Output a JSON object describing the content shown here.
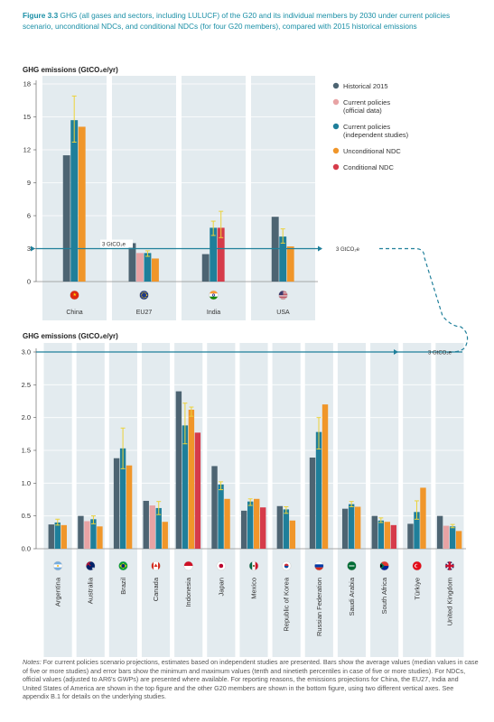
{
  "figure": {
    "label": "Figure 3.3",
    "caption": "GHG (all gases and sectors, including LULUCF) of the G20 and its individual members by 2030 under current policies scenario, unconditional NDCs, and conditional NDCs (for four G20 members), compared with 2015 historical emissions"
  },
  "threshold_label": "3 GtCO₂e",
  "colors": {
    "historical": "#4d6472",
    "cp_official": "#e8a3a4",
    "cp_independent": "#1f7f9a",
    "unconditional": "#f0962a",
    "conditional": "#d63b4a",
    "error": "#ecd23a",
    "panel": "#e3ebef",
    "teal_line": "#1f7f9a"
  },
  "notes": {
    "label": "Notes:",
    "text": "For current policies scenario projections, estimates based on independent studies are presented. Bars show the average values (median values in case of five or more studies) and error bars show the minimum and maximum values (tenth and ninetieth percentiles in case of five or more studies). For NDCs, official values (adjusted to AR6's GWPs) are presented where available. For reporting reasons, the emissions projections for China, the EU27, India and United States of America are shown in the top figure and the other G20 members are shown in the bottom figure, using two different vertical axes. See appendix B.1 for details on the underlying studies."
  },
  "chart_data": [
    {
      "type": "bar",
      "ylabel": "GHG emissions (GtCO₂e/yr)",
      "ylim": [
        0,
        18
      ],
      "yticks": [
        "0",
        "3",
        "6",
        "9",
        "12",
        "15",
        "18"
      ],
      "threshold": 3,
      "legend_position": "right",
      "series": [
        {
          "name": "Historical 2015",
          "key": "historical"
        },
        {
          "name": "Current policies (official data)",
          "key": "cp_official"
        },
        {
          "name": "Current policies (independent studies)",
          "key": "cp_independent"
        },
        {
          "name": "Unconditional NDC",
          "key": "unconditional"
        },
        {
          "name": "Conditional NDC",
          "key": "conditional"
        }
      ],
      "categories": [
        {
          "name": "China",
          "flag": "china-flag-icon",
          "bars": [
            {
              "s": "historical",
              "v": 11.5
            },
            {
              "s": "cp_independent",
              "v": 14.7,
              "err": [
                12.7,
                16.9
              ]
            },
            {
              "s": "unconditional",
              "v": 14.1
            }
          ]
        },
        {
          "name": "EU27",
          "flag": "eu-flag-icon",
          "bars": [
            {
              "s": "historical",
              "v": 3.5
            },
            {
              "s": "cp_official",
              "v": 2.6
            },
            {
              "s": "cp_independent",
              "v": 2.6,
              "err": [
                2.3,
                2.8
              ]
            },
            {
              "s": "unconditional",
              "v": 2.1
            }
          ]
        },
        {
          "name": "India",
          "flag": "india-flag-icon",
          "bars": [
            {
              "s": "historical",
              "v": 2.5
            },
            {
              "s": "cp_independent",
              "v": 4.9,
              "err": [
                4.2,
                5.5
              ]
            },
            {
              "s": "conditional",
              "v": 4.9,
              "err": [
                4.0,
                6.4
              ]
            }
          ]
        },
        {
          "name": "USA",
          "flag": "usa-flag-icon",
          "bars": [
            {
              "s": "historical",
              "v": 5.9
            },
            {
              "s": "cp_independent",
              "v": 4.1,
              "err": [
                3.5,
                4.8
              ]
            },
            {
              "s": "unconditional",
              "v": 3.2
            }
          ]
        }
      ]
    },
    {
      "type": "bar",
      "ylabel": "GHG emissions (GtCO₂e/yr)",
      "ylim": [
        0,
        3.0
      ],
      "yticks": [
        "0.0",
        "0.5",
        "1.0",
        "1.5",
        "2.0",
        "2.5",
        "3.0"
      ],
      "threshold": 3.0,
      "categories": [
        {
          "name": "Argentina",
          "flag": "argentina-flag-icon",
          "bars": [
            {
              "s": "historical",
              "v": 0.37
            },
            {
              "s": "cp_independent",
              "v": 0.4,
              "err": [
                0.36,
                0.45
              ]
            },
            {
              "s": "unconditional",
              "v": 0.36
            }
          ]
        },
        {
          "name": "Australia",
          "flag": "australia-flag-icon",
          "bars": [
            {
              "s": "historical",
              "v": 0.5
            },
            {
              "s": "cp_official",
              "v": 0.42
            },
            {
              "s": "cp_independent",
              "v": 0.45,
              "err": [
                0.38,
                0.5
              ]
            },
            {
              "s": "unconditional",
              "v": 0.34
            }
          ]
        },
        {
          "name": "Brazil",
          "flag": "brazil-flag-icon",
          "bars": [
            {
              "s": "historical",
              "v": 1.38
            },
            {
              "s": "cp_independent",
              "v": 1.53,
              "err": [
                1.22,
                1.84
              ]
            },
            {
              "s": "unconditional",
              "v": 1.27
            }
          ]
        },
        {
          "name": "Canada",
          "flag": "canada-flag-icon",
          "bars": [
            {
              "s": "historical",
              "v": 0.73
            },
            {
              "s": "cp_official",
              "v": 0.66
            },
            {
              "s": "cp_independent",
              "v": 0.62,
              "err": [
                0.52,
                0.72
              ]
            },
            {
              "s": "unconditional",
              "v": 0.41
            }
          ]
        },
        {
          "name": "Indonesia",
          "flag": "indonesia-flag-icon",
          "bars": [
            {
              "s": "historical",
              "v": 2.4
            },
            {
              "s": "cp_independent",
              "v": 1.88,
              "err": [
                1.6,
                2.22
              ]
            },
            {
              "s": "unconditional",
              "v": 2.12,
              "err": [
                2.02,
                2.16
              ]
            },
            {
              "s": "conditional",
              "v": 1.77
            }
          ]
        },
        {
          "name": "Japan",
          "flag": "japan-flag-icon",
          "bars": [
            {
              "s": "historical",
              "v": 1.26
            },
            {
              "s": "cp_independent",
              "v": 0.98,
              "err": [
                0.9,
                1.02
              ]
            },
            {
              "s": "unconditional",
              "v": 0.76
            }
          ]
        },
        {
          "name": "Mexico",
          "flag": "mexico-flag-icon",
          "bars": [
            {
              "s": "historical",
              "v": 0.58
            },
            {
              "s": "cp_independent",
              "v": 0.72,
              "err": [
                0.66,
                0.76
              ]
            },
            {
              "s": "unconditional",
              "v": 0.76
            },
            {
              "s": "conditional",
              "v": 0.63
            }
          ]
        },
        {
          "name": "Republic of Korea",
          "flag": "korea-flag-icon",
          "bars": [
            {
              "s": "historical",
              "v": 0.65
            },
            {
              "s": "cp_independent",
              "v": 0.6,
              "err": [
                0.54,
                0.64
              ]
            },
            {
              "s": "unconditional",
              "v": 0.43
            }
          ]
        },
        {
          "name": "Russian Federation",
          "flag": "russia-flag-icon",
          "bars": [
            {
              "s": "historical",
              "v": 1.39
            },
            {
              "s": "cp_independent",
              "v": 1.78,
              "err": [
                1.52,
                2.0
              ]
            },
            {
              "s": "unconditional",
              "v": 2.2
            }
          ]
        },
        {
          "name": "Saudi Arabia",
          "flag": "saudi-flag-icon",
          "bars": [
            {
              "s": "historical",
              "v": 0.61
            },
            {
              "s": "cp_independent",
              "v": 0.68,
              "err": [
                0.64,
                0.72
              ]
            },
            {
              "s": "unconditional",
              "v": 0.64
            }
          ]
        },
        {
          "name": "South Africa",
          "flag": "south-africa-flag-icon",
          "bars": [
            {
              "s": "historical",
              "v": 0.5
            },
            {
              "s": "cp_independent",
              "v": 0.43,
              "err": [
                0.4,
                0.47
              ]
            },
            {
              "s": "unconditional",
              "v": 0.41
            },
            {
              "s": "conditional",
              "v": 0.36
            }
          ]
        },
        {
          "name": "Türkiye",
          "flag": "turkiye-flag-icon",
          "bars": [
            {
              "s": "historical",
              "v": 0.38
            },
            {
              "s": "cp_independent",
              "v": 0.56,
              "err": [
                0.45,
                0.73
              ]
            },
            {
              "s": "unconditional",
              "v": 0.93
            }
          ]
        },
        {
          "name": "United Kingdom",
          "flag": "uk-flag-icon",
          "bars": [
            {
              "s": "historical",
              "v": 0.5
            },
            {
              "s": "cp_official",
              "v": 0.35
            },
            {
              "s": "cp_independent",
              "v": 0.34,
              "err": [
                0.32,
                0.37
              ]
            },
            {
              "s": "unconditional",
              "v": 0.27
            }
          ]
        }
      ]
    }
  ]
}
